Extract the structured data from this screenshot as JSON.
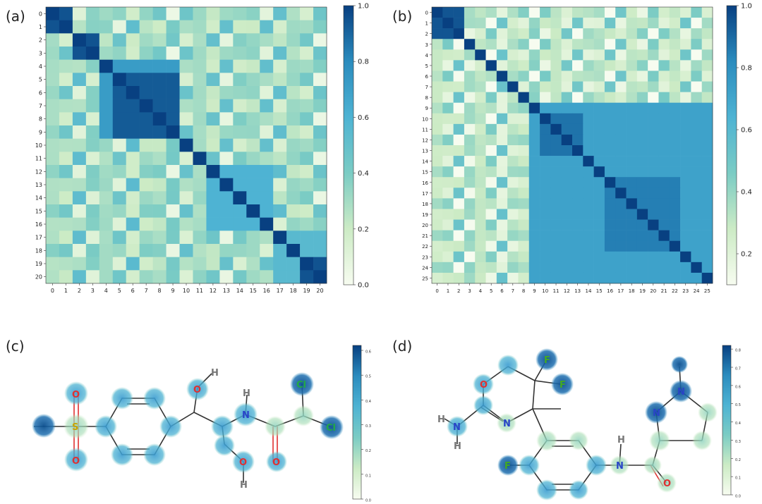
{
  "panels": {
    "a": {
      "label": "(a)"
    },
    "b": {
      "label": "(b)"
    },
    "c": {
      "label": "(c)"
    },
    "d": {
      "label": "(d)"
    }
  },
  "colors": {
    "high": "#08306b",
    "mid": "#4aa3cc",
    "low": "#f7fcf0",
    "bond": "#333333",
    "oxygen": "#e03030",
    "nitrogen": "#2a44c8",
    "sulfur": "#c8a400",
    "chlorine": "#22aa44",
    "fluorine": "#44aa22",
    "hydrogen": "#777777"
  },
  "chart_data": [
    {
      "id": "a",
      "type": "heatmap",
      "colormap": "GnBu",
      "xlabels": [
        "0",
        "1",
        "2",
        "3",
        "4",
        "5",
        "6",
        "7",
        "8",
        "9",
        "10",
        "11",
        "12",
        "13",
        "14",
        "15",
        "16",
        "17",
        "18",
        "19",
        "20"
      ],
      "ylabels": [
        "0",
        "1",
        "2",
        "3",
        "4",
        "5",
        "6",
        "7",
        "8",
        "9",
        "10",
        "11",
        "12",
        "13",
        "14",
        "15",
        "16",
        "17",
        "18",
        "19",
        "20"
      ],
      "clim": [
        0.0,
        1.0
      ],
      "colorbar_ticks": [
        "0.0",
        "0.2",
        "0.4",
        "0.6",
        "0.8",
        "1.0"
      ],
      "blocks": [
        {
          "rows": [
            0,
            1
          ],
          "cols": [
            0,
            1
          ],
          "value": 0.95
        },
        {
          "rows": [
            2,
            3
          ],
          "cols": [
            2,
            3
          ],
          "value": 0.95
        },
        {
          "rows": [
            5,
            9
          ],
          "cols": [
            5,
            9
          ],
          "value": 0.93
        },
        {
          "rows": [
            4,
            9
          ],
          "cols": [
            4,
            4
          ],
          "value": 0.72
        },
        {
          "rows": [
            12,
            16
          ],
          "cols": [
            12,
            16
          ],
          "value": 0.6
        },
        {
          "rows": [
            19,
            20
          ],
          "cols": [
            19,
            20
          ],
          "value": 0.95
        },
        {
          "rows": [
            17,
            20
          ],
          "cols": [
            17,
            18
          ],
          "value": 0.55
        }
      ],
      "background_value": 0.3
    },
    {
      "id": "b",
      "type": "heatmap",
      "colormap": "GnBu",
      "xlabels": [
        "0",
        "1",
        "2",
        "3",
        "4",
        "5",
        "6",
        "7",
        "8",
        "9",
        "10",
        "11",
        "12",
        "13",
        "14",
        "15",
        "16",
        "17",
        "18",
        "19",
        "20",
        "21",
        "22",
        "23",
        "24",
        "25"
      ],
      "ylabels": [
        "0",
        "1",
        "2",
        "3",
        "4",
        "5",
        "6",
        "7",
        "8",
        "9",
        "10",
        "11",
        "12",
        "13",
        "14",
        "15",
        "16",
        "17",
        "18",
        "19",
        "20",
        "21",
        "22",
        "23",
        "24",
        "25"
      ],
      "clim": [
        0.1,
        1.0
      ],
      "colorbar_ticks": [
        "0.2",
        "0.4",
        "0.6",
        "0.8",
        "1.0"
      ],
      "blocks": [
        {
          "rows": [
            0,
            2
          ],
          "cols": [
            0,
            2
          ],
          "value": 0.95
        },
        {
          "rows": [
            9,
            25
          ],
          "cols": [
            9,
            25
          ],
          "value": 0.72
        },
        {
          "rows": [
            10,
            13
          ],
          "cols": [
            10,
            13
          ],
          "value": 0.88
        },
        {
          "rows": [
            16,
            22
          ],
          "cols": [
            16,
            22
          ],
          "value": 0.85
        }
      ],
      "background_value": 0.3
    }
  ],
  "molecules": {
    "c": {
      "colorbar_ticks": [
        "0.0",
        "0.1",
        "0.2",
        "0.3",
        "0.4",
        "0.5",
        "0.6"
      ],
      "atoms": [
        "O",
        "S",
        "O",
        "O",
        "H",
        "H",
        "N",
        "O",
        "H",
        "O",
        "Cl",
        "Cl"
      ]
    },
    "d": {
      "colorbar_ticks": [
        "0.0",
        "0.1",
        "0.2",
        "0.3",
        "0.4",
        "0.5",
        "0.6",
        "0.7",
        "0.8"
      ],
      "atoms": [
        "O",
        "F",
        "F",
        "N",
        "H",
        "N",
        "H",
        "F",
        "N",
        "H",
        "O",
        "N",
        "N"
      ]
    }
  }
}
